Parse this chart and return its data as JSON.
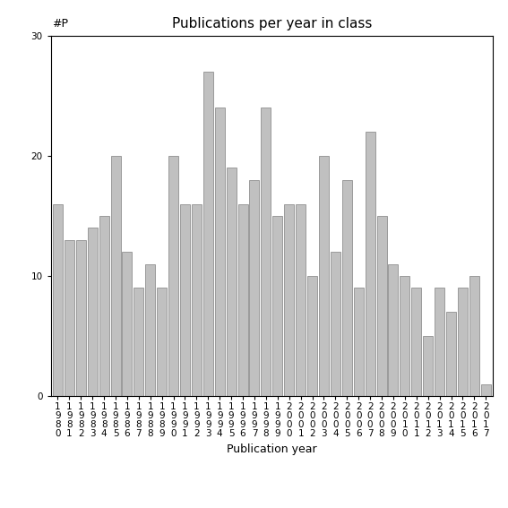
{
  "title": "Publications per year in class",
  "xlabel": "Publication year",
  "ylabel": "#P",
  "years": [
    1980,
    1981,
    1982,
    1983,
    1984,
    1985,
    1986,
    1987,
    1988,
    1989,
    1990,
    1991,
    1992,
    1993,
    1994,
    1995,
    1996,
    1997,
    1998,
    1999,
    2000,
    2001,
    2002,
    2003,
    2004,
    2005,
    2006,
    2007,
    2008,
    2009,
    2010,
    2011,
    2012,
    2013,
    2014,
    2015,
    2016,
    2017
  ],
  "values": [
    16,
    13,
    13,
    14,
    15,
    20,
    12,
    9,
    11,
    9,
    20,
    16,
    16,
    27,
    24,
    19,
    16,
    18,
    24,
    15,
    16,
    16,
    10,
    20,
    12,
    18,
    9,
    22,
    15,
    11,
    10,
    9,
    5,
    9,
    7,
    9,
    10,
    1
  ],
  "bar_color": "#c0c0c0",
  "bar_edgecolor": "#808080",
  "ylim": [
    0,
    30
  ],
  "yticks": [
    0,
    10,
    20,
    30
  ],
  "background_color": "#ffffff",
  "title_fontsize": 11,
  "axis_fontsize": 9,
  "tick_fontsize": 7.5
}
